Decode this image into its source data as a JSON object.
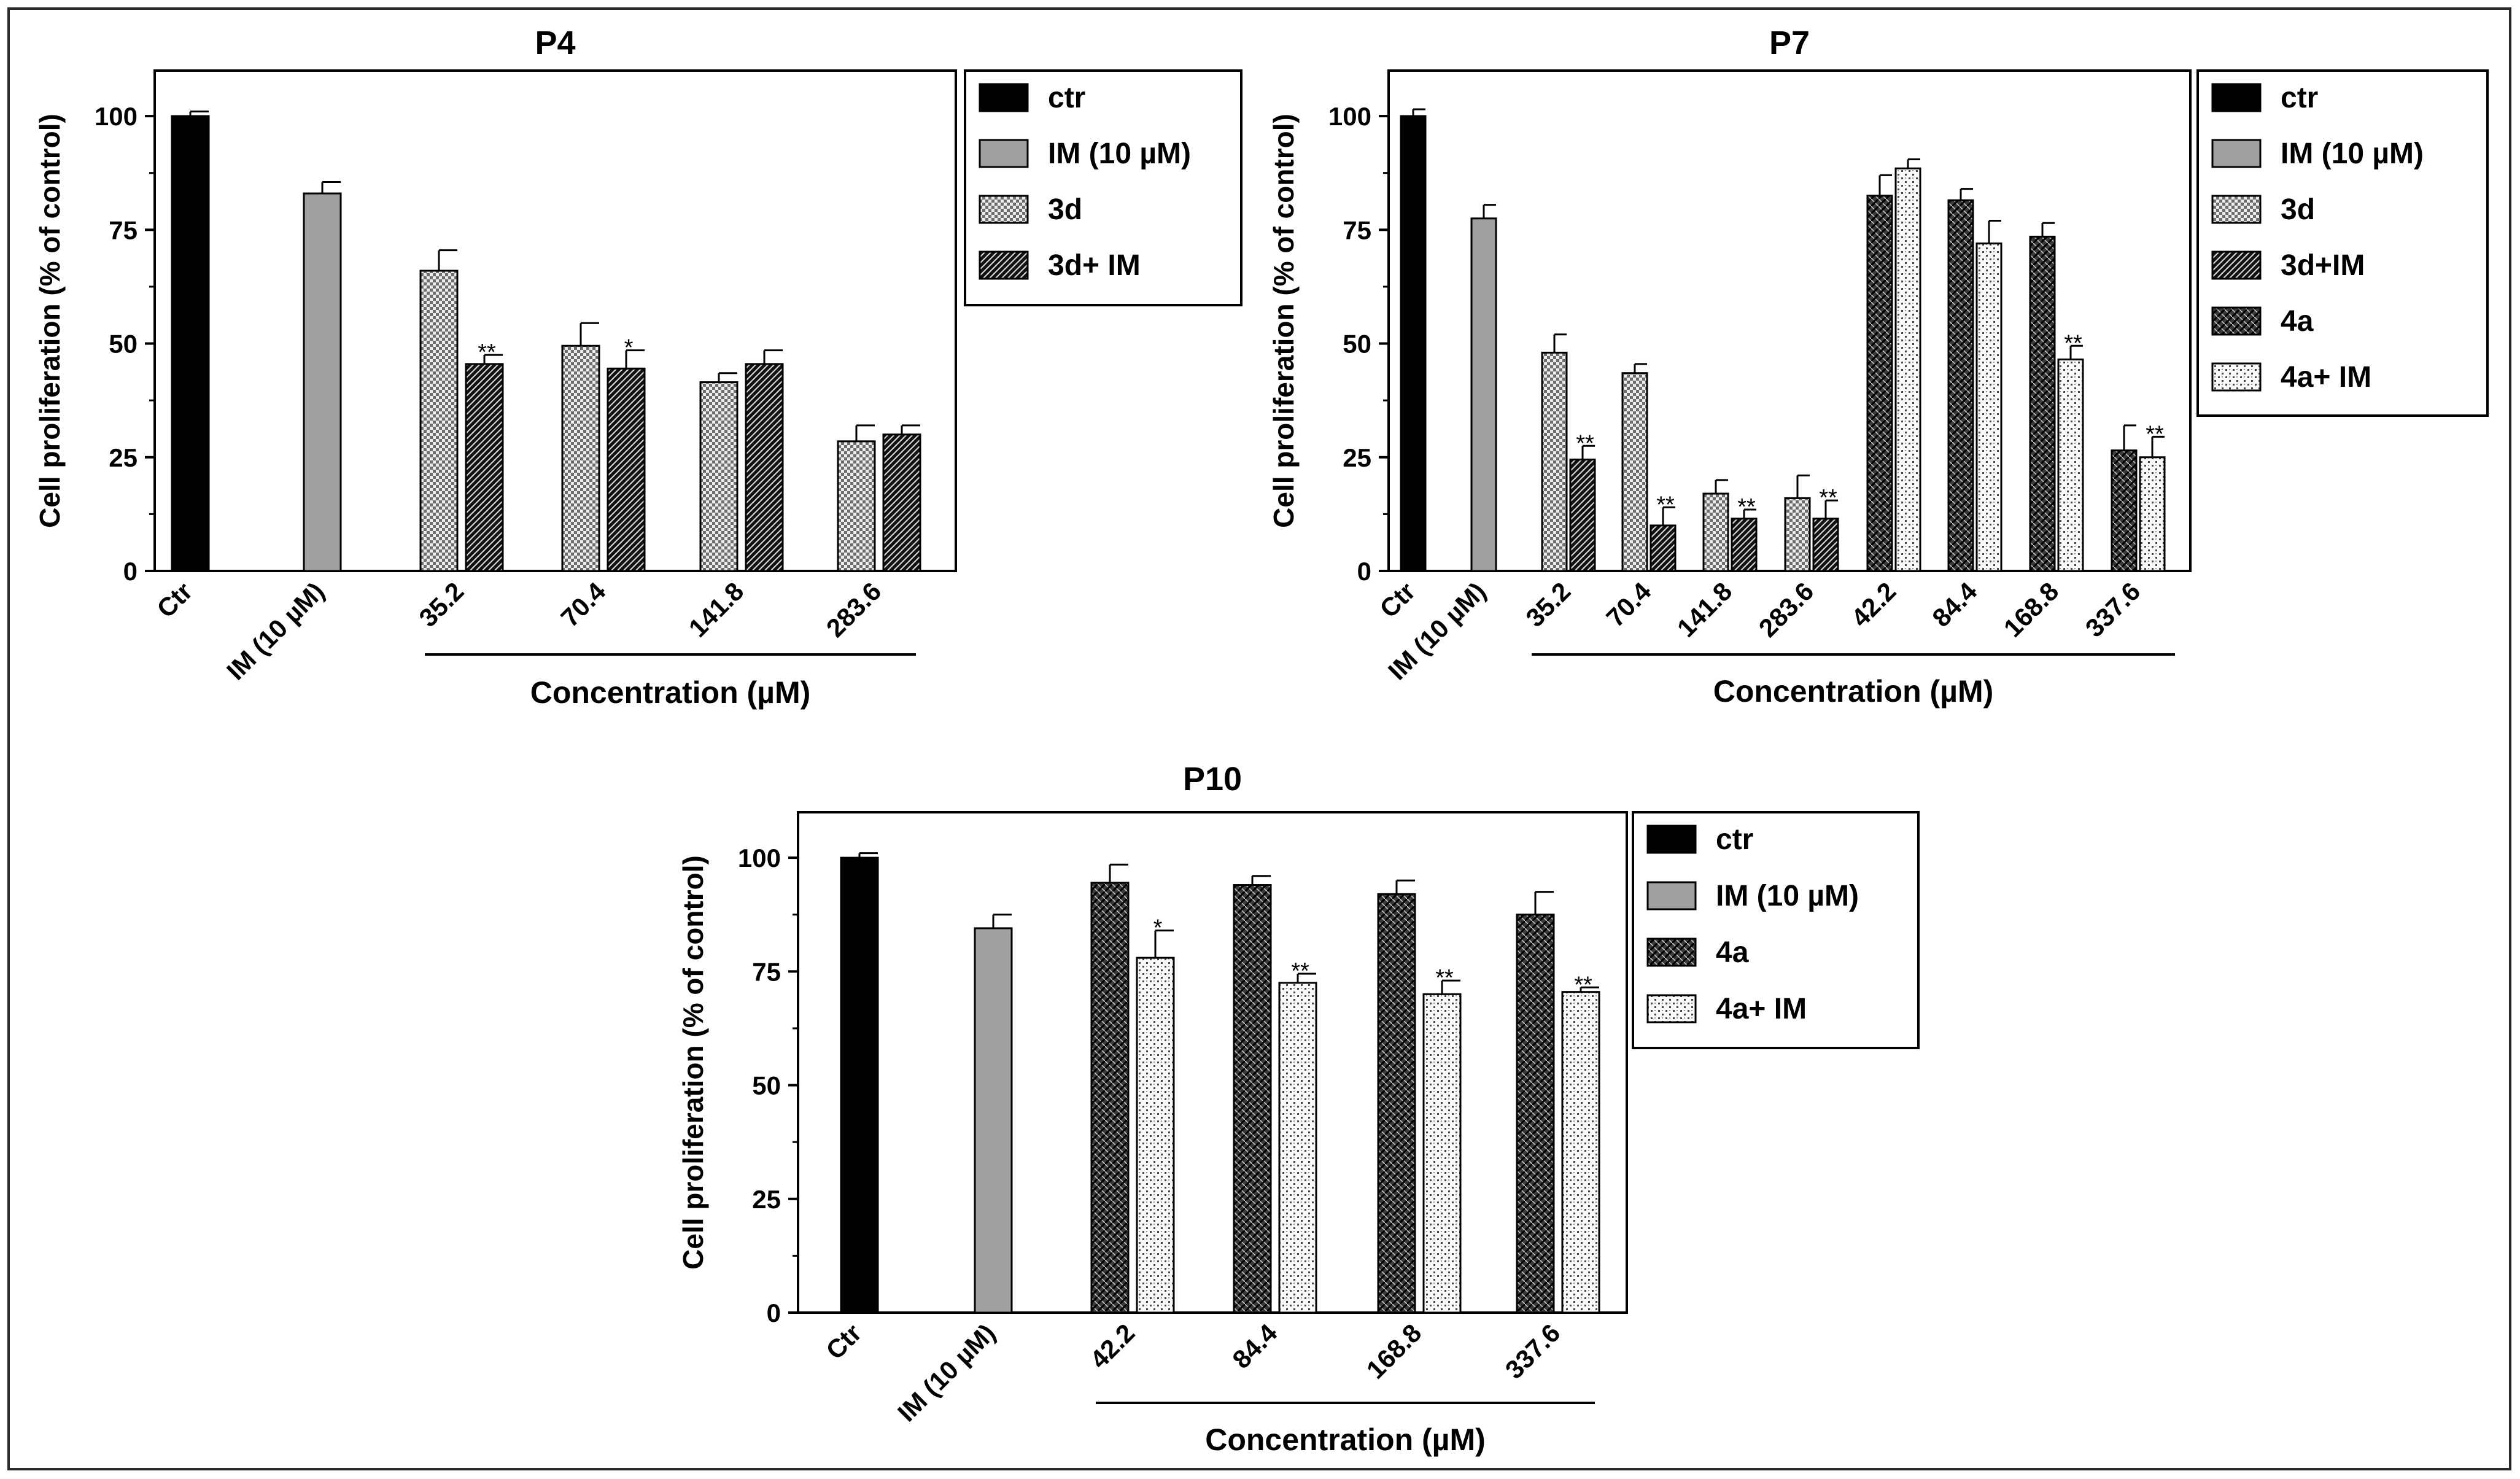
{
  "chart_data": [
    {
      "type": "bar",
      "title": "P4",
      "ylabel": "Cell proliferation (% of control)",
      "xlabel": "Concentration (µM)",
      "ylim": [
        0,
        110
      ],
      "yticks": [
        "0",
        "25",
        "50",
        "75",
        "100"
      ],
      "categories": [
        "Ctr",
        "IM (10 µM)",
        "35.2",
        "70.4",
        "141.8",
        "283.6"
      ],
      "legend": [
        "ctr",
        "IM (10 µM)",
        "3d",
        "3d+ IM"
      ],
      "groups": [
        {
          "label": "Ctr",
          "bars": [
            {
              "series": "ctr",
              "value": 100,
              "err": 1
            }
          ]
        },
        {
          "label": "IM (10 µM)",
          "bars": [
            {
              "series": "IM (10 µM)",
              "value": 83,
              "err": 2.5
            }
          ]
        },
        {
          "label": "35.2",
          "bars": [
            {
              "series": "3d",
              "value": 66,
              "err": 4.5
            },
            {
              "series": "3d+ IM",
              "value": 45.5,
              "err": 2,
              "sig": "**"
            }
          ]
        },
        {
          "label": "70.4",
          "bars": [
            {
              "series": "3d",
              "value": 49.5,
              "err": 5
            },
            {
              "series": "3d+ IM",
              "value": 44.5,
              "err": 4,
              "sig": "*"
            }
          ]
        },
        {
          "label": "141.8",
          "bars": [
            {
              "series": "3d",
              "value": 41.5,
              "err": 2
            },
            {
              "series": "3d+ IM",
              "value": 45.5,
              "err": 3
            }
          ]
        },
        {
          "label": "283.6",
          "bars": [
            {
              "series": "3d",
              "value": 28.5,
              "err": 3.5
            },
            {
              "series": "3d+ IM",
              "value": 30,
              "err": 2
            }
          ]
        }
      ]
    },
    {
      "type": "bar",
      "title": "P7",
      "ylabel": "Cell proliferation (% of control)",
      "xlabel": "Concentration (µM)",
      "ylim": [
        0,
        110
      ],
      "yticks": [
        "0",
        "25",
        "50",
        "75",
        "100"
      ],
      "categories": [
        "Ctr",
        "IM (10 µM)",
        "35.2",
        "70.4",
        "141.8",
        "283.6",
        "42.2",
        "84.4",
        "168.8",
        "337.6"
      ],
      "legend": [
        "ctr",
        "IM (10 µM)",
        "3d",
        "3d+IM",
        "4a",
        "4a+ IM"
      ],
      "groups": [
        {
          "label": "Ctr",
          "bars": [
            {
              "series": "ctr",
              "value": 100,
              "err": 1.5
            }
          ]
        },
        {
          "label": "IM (10 µM)",
          "bars": [
            {
              "series": "IM (10 µM)",
              "value": 77.5,
              "err": 3
            }
          ]
        },
        {
          "label": "35.2",
          "bars": [
            {
              "series": "3d",
              "value": 48,
              "err": 4
            },
            {
              "series": "3d+IM",
              "value": 24.5,
              "err": 3,
              "sig": "**"
            }
          ]
        },
        {
          "label": "70.4",
          "bars": [
            {
              "series": "3d",
              "value": 43.5,
              "err": 2
            },
            {
              "series": "3d+IM",
              "value": 10,
              "err": 4,
              "sig": "**"
            }
          ]
        },
        {
          "label": "141.8",
          "bars": [
            {
              "series": "3d",
              "value": 17,
              "err": 3
            },
            {
              "series": "3d+IM",
              "value": 11.5,
              "err": 2,
              "sig": "**"
            }
          ]
        },
        {
          "label": "283.6",
          "bars": [
            {
              "series": "3d",
              "value": 16,
              "err": 5
            },
            {
              "series": "3d+IM",
              "value": 11.5,
              "err": 4,
              "sig": "**"
            }
          ]
        },
        {
          "label": "42.2",
          "bars": [
            {
              "series": "4a",
              "value": 82.5,
              "err": 4.5
            },
            {
              "series": "4a+ IM",
              "value": 88.5,
              "err": 2
            }
          ]
        },
        {
          "label": "84.4",
          "bars": [
            {
              "series": "4a",
              "value": 81.5,
              "err": 2.5
            },
            {
              "series": "4a+ IM",
              "value": 72,
              "err": 5
            }
          ]
        },
        {
          "label": "168.8",
          "bars": [
            {
              "series": "4a",
              "value": 73.5,
              "err": 3
            },
            {
              "series": "4a+ IM",
              "value": 46.5,
              "err": 3,
              "sig": "**"
            }
          ]
        },
        {
          "label": "337.6",
          "bars": [
            {
              "series": "4a",
              "value": 26.5,
              "err": 5.5
            },
            {
              "series": "4a+ IM",
              "value": 25,
              "err": 4.5,
              "sig": "**"
            }
          ]
        }
      ]
    },
    {
      "type": "bar",
      "title": "P10",
      "ylabel": "Cell proliferation (% of control)",
      "xlabel": "Concentration (µM)",
      "ylim": [
        0,
        110
      ],
      "yticks": [
        "0",
        "25",
        "50",
        "75",
        "100"
      ],
      "categories": [
        "Ctr",
        "IM (10 µM)",
        "42.2",
        "84.4",
        "168.8",
        "337.6"
      ],
      "legend": [
        "ctr",
        "IM (10 µM)",
        "4a",
        "4a+ IM"
      ],
      "groups": [
        {
          "label": "Ctr",
          "bars": [
            {
              "series": "ctr",
              "value": 100,
              "err": 1
            }
          ]
        },
        {
          "label": "IM (10 µM)",
          "bars": [
            {
              "series": "IM (10 µM)",
              "value": 84.5,
              "err": 3
            }
          ]
        },
        {
          "label": "42.2",
          "bars": [
            {
              "series": "4a",
              "value": 94.5,
              "err": 4
            },
            {
              "series": "4a+ IM",
              "value": 78,
              "err": 6,
              "sig": "*"
            }
          ]
        },
        {
          "label": "84.4",
          "bars": [
            {
              "series": "4a",
              "value": 94,
              "err": 2
            },
            {
              "series": "4a+ IM",
              "value": 72.5,
              "err": 2,
              "sig": "**"
            }
          ]
        },
        {
          "label": "168.8",
          "bars": [
            {
              "series": "4a",
              "value": 92,
              "err": 3
            },
            {
              "series": "4a+ IM",
              "value": 70,
              "err": 3,
              "sig": "**"
            }
          ]
        },
        {
          "label": "337.6",
          "bars": [
            {
              "series": "4a",
              "value": 87.5,
              "err": 5
            },
            {
              "series": "4a+ IM",
              "value": 70.5,
              "err": 1,
              "sig": "**"
            }
          ]
        }
      ]
    }
  ],
  "styles": {
    "ctr": "#000000",
    "IM (10 µM)": "#a0a0a0",
    "3d": "checker",
    "3d+ IM": "dark-diagonal",
    "3d+IM": "dark-diagonal",
    "4a": "dark-weave",
    "4a+ IM": "light-dotted"
  }
}
